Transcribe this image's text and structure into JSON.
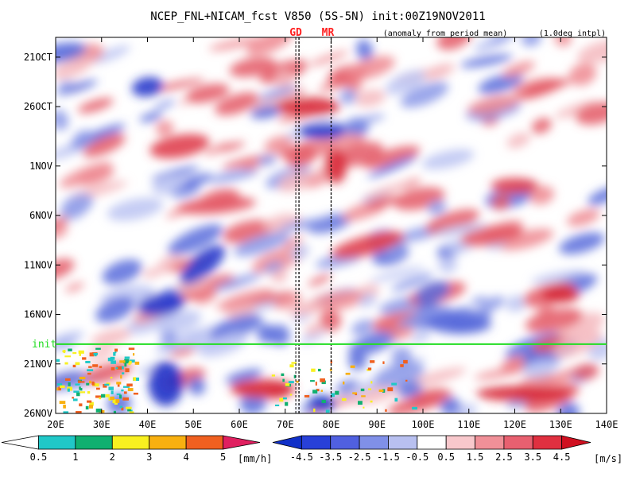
{
  "chart_data": {
    "type": "heatmap",
    "title": "NCEP_FNL+NICAM_fcst V850 (5S-5N) init:00Z19NOV2011",
    "subtitle_left": "(anomaly from period mean)",
    "subtitle_right": "(1.0deg intpl)",
    "x_ticks": [
      "20E",
      "30E",
      "40E",
      "50E",
      "60E",
      "70E",
      "80E",
      "90E",
      "100E",
      "110E",
      "120E",
      "130E",
      "140E"
    ],
    "x_range": [
      20,
      140
    ],
    "y_ticks": [
      "21OCT",
      "26OCT",
      "1NOV",
      "6NOV",
      "11NOV",
      "16NOV",
      "21NOV",
      "26NOV"
    ],
    "y_range_days": [
      "19OCT2011",
      "26NOV2011"
    ],
    "init_label": "init",
    "init_date": "19NOV2011",
    "markers": [
      {
        "label": "GD",
        "lon": 73
      },
      {
        "label": "MR",
        "lon": 80
      }
    ],
    "marker_color": "#ff2020",
    "init_color": "#22dd22",
    "precip_colorbar": {
      "unit": "[mm/h]",
      "labels": [
        "0.5",
        "1",
        "2",
        "3",
        "4",
        "5"
      ],
      "colors": [
        "#ffffff",
        "#20c8c8",
        "#10b070",
        "#f8f020",
        "#f8b010",
        "#f06020",
        "#e02060"
      ]
    },
    "v_colorbar": {
      "unit": "[m/s]",
      "labels": [
        "-4.5",
        "-3.5",
        "-2.5",
        "-1.5",
        "-0.5",
        "0.5",
        "1.5",
        "2.5",
        "3.5",
        "4.5"
      ],
      "colors": [
        "#1030c8",
        "#2840d8",
        "#5060e0",
        "#8090e8",
        "#b8c0f0",
        "#ffffff",
        "#f8c8cc",
        "#f09098",
        "#e86070",
        "#e03040",
        "#d01020"
      ]
    }
  }
}
